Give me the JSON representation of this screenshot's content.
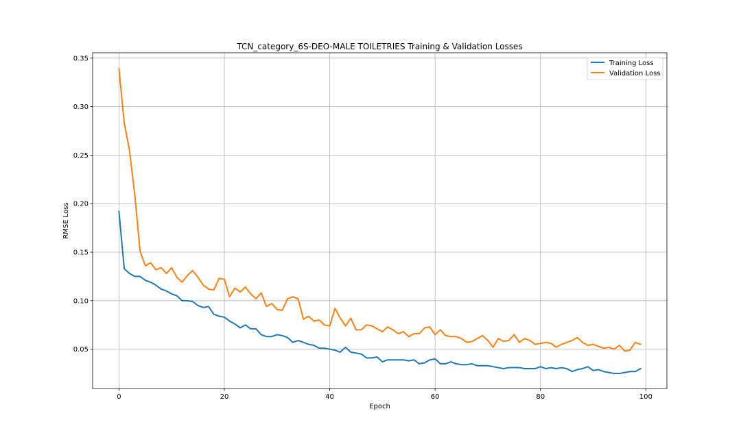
{
  "chart_data": {
    "type": "line",
    "title": "TCN_category_6S-DEO-MALE TOILETRIES Training & Validation Losses",
    "xlabel": "Epoch",
    "ylabel": "RMSE Loss",
    "xlim": [
      -5,
      104
    ],
    "ylim": [
      0.0095,
      0.3555
    ],
    "xticks": [
      0,
      20,
      40,
      60,
      80,
      100
    ],
    "xtick_labels": [
      "0",
      "20",
      "40",
      "60",
      "80",
      "100"
    ],
    "yticks": [
      0.05,
      0.1,
      0.15,
      0.2,
      0.25,
      0.3,
      0.35
    ],
    "ytick_labels": [
      "0.05",
      "0.10",
      "0.15",
      "0.20",
      "0.25",
      "0.30",
      "0.35"
    ],
    "grid": true,
    "legend_position": "top-right",
    "x_start": 0,
    "series": [
      {
        "name": "Training Loss",
        "color": "#1f77b4",
        "values": [
          0.192,
          0.133,
          0.128,
          0.125,
          0.125,
          0.121,
          0.119,
          0.116,
          0.112,
          0.11,
          0.107,
          0.105,
          0.1,
          0.1,
          0.099,
          0.095,
          0.093,
          0.094,
          0.086,
          0.084,
          0.083,
          0.079,
          0.076,
          0.072,
          0.075,
          0.071,
          0.071,
          0.065,
          0.063,
          0.063,
          0.065,
          0.064,
          0.062,
          0.057,
          0.059,
          0.057,
          0.055,
          0.054,
          0.051,
          0.051,
          0.05,
          0.049,
          0.047,
          0.052,
          0.047,
          0.046,
          0.045,
          0.041,
          0.041,
          0.042,
          0.037,
          0.039,
          0.039,
          0.039,
          0.039,
          0.038,
          0.039,
          0.035,
          0.036,
          0.039,
          0.04,
          0.035,
          0.035,
          0.037,
          0.035,
          0.034,
          0.034,
          0.035,
          0.033,
          0.033,
          0.033,
          0.032,
          0.031,
          0.03,
          0.031,
          0.031,
          0.031,
          0.03,
          0.03,
          0.03,
          0.032,
          0.03,
          0.031,
          0.03,
          0.031,
          0.03,
          0.027,
          0.029,
          0.03,
          0.032,
          0.028,
          0.029,
          0.027,
          0.026,
          0.025,
          0.025,
          0.026,
          0.027,
          0.027,
          0.03
        ]
      },
      {
        "name": "Validation Loss",
        "color": "#ff7f0e",
        "values": [
          0.339,
          0.283,
          0.255,
          0.209,
          0.151,
          0.136,
          0.139,
          0.132,
          0.134,
          0.128,
          0.134,
          0.124,
          0.119,
          0.126,
          0.131,
          0.124,
          0.116,
          0.112,
          0.111,
          0.123,
          0.122,
          0.104,
          0.113,
          0.109,
          0.114,
          0.107,
          0.102,
          0.108,
          0.094,
          0.097,
          0.091,
          0.09,
          0.102,
          0.104,
          0.102,
          0.081,
          0.084,
          0.079,
          0.08,
          0.075,
          0.074,
          0.092,
          0.082,
          0.074,
          0.082,
          0.07,
          0.07,
          0.075,
          0.074,
          0.071,
          0.068,
          0.073,
          0.07,
          0.066,
          0.068,
          0.063,
          0.066,
          0.066,
          0.072,
          0.073,
          0.065,
          0.07,
          0.064,
          0.063,
          0.063,
          0.061,
          0.057,
          0.058,
          0.061,
          0.064,
          0.059,
          0.052,
          0.061,
          0.058,
          0.059,
          0.065,
          0.057,
          0.061,
          0.059,
          0.055,
          0.056,
          0.057,
          0.056,
          0.052,
          0.055,
          0.057,
          0.059,
          0.062,
          0.057,
          0.054,
          0.055,
          0.053,
          0.051,
          0.052,
          0.05,
          0.054,
          0.048,
          0.049,
          0.057,
          0.055
        ]
      }
    ]
  }
}
